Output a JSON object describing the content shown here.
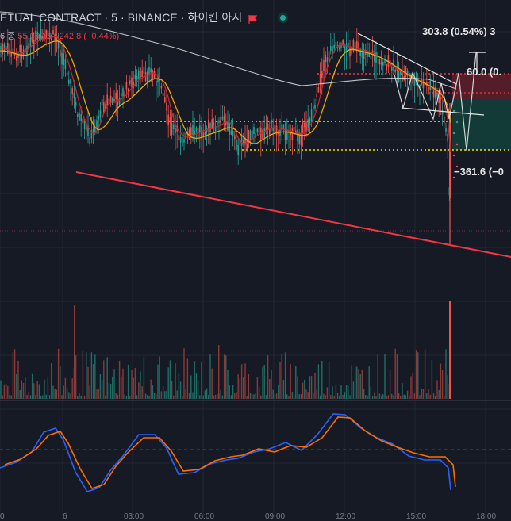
{
  "header": {
    "title": "ETUAL CONTRACT · 5 · BINANCE · 하이킨 아시",
    "ohlc_label": "6 종",
    "ohlc_close": "55,367.5",
    "ohlc_change": "−242.8 (−0.44%)"
  },
  "annotations": {
    "measure_up": "303.8 (0.54%) 3",
    "target_level": "60.0 (0.",
    "measure_down": "−361.6 (−0"
  },
  "x_axis": {
    "ticks": [
      "0",
      "6",
      "03:00",
      "06:00",
      "09:00",
      "12:00",
      "15:00",
      "18:00"
    ]
  },
  "colors": {
    "background": "#161a25",
    "grid": "#232735",
    "bull": "#26a69a",
    "bear": "#ef5350",
    "trendline": "#f23645",
    "level_yellow": "#f5e100",
    "level_red": "#f23645",
    "ma_fast": "#c62828",
    "ma_mid": "#f4a300",
    "ma_slow": "#e0e0e0",
    "macd": "#2962ff",
    "signal": "#ff6d00"
  },
  "panes": {
    "price": "price",
    "volume": "volume",
    "oscillator": "oscillator"
  }
}
